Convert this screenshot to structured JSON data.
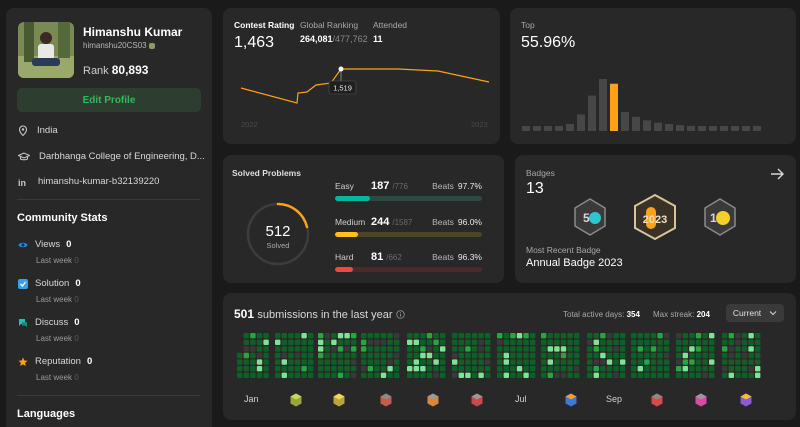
{
  "profile": {
    "name": "Himanshu Kumar",
    "handle": "himanshu20CS03",
    "rank_label": "Rank",
    "rank_value": "80,893",
    "edit_label": "Edit Profile",
    "location": "India",
    "school": "Darbhanga College of Engineering, D...",
    "linkedin": "himanshu-kumar-b32139220"
  },
  "community": {
    "title": "Community Stats",
    "items": [
      {
        "label": "Views",
        "value": "0",
        "sub": "Last week",
        "sub_value": "0"
      },
      {
        "label": "Solution",
        "value": "0",
        "sub": "Last week",
        "sub_value": "0"
      },
      {
        "label": "Discuss",
        "value": "0",
        "sub": "Last week",
        "sub_value": "0"
      },
      {
        "label": "Reputation",
        "value": "0",
        "sub": "Last week",
        "sub_value": "0"
      }
    ]
  },
  "languages_title": "Languages",
  "contest": {
    "rating_label": "Contest Rating",
    "rating_value": "1,463",
    "global_label": "Global Ranking",
    "global_value": "264,081",
    "global_total": "/477,762",
    "attended_label": "Attended",
    "attended_value": "11",
    "tooltip_value": "1,519",
    "x_start": "2022",
    "x_end": "2023",
    "line_color": "#ffa116"
  },
  "top": {
    "label": "Top",
    "value": "55.96%",
    "histogram": [
      2,
      2,
      2,
      3,
      6,
      14,
      30,
      44,
      40,
      16,
      12,
      9,
      7,
      6,
      5,
      4,
      3,
      3,
      2,
      2,
      2,
      2
    ],
    "highlight_index": 8
  },
  "solved": {
    "title": "Solved Problems",
    "total": "512",
    "total_label": "Solved",
    "beats_label": "Beats",
    "difficulties": [
      {
        "name": "Easy",
        "solved": "187",
        "total": "/776",
        "beats": "97.7%",
        "color": "#00b8a3",
        "track": "#2a4a45",
        "fraction": 0.241
      },
      {
        "name": "Medium",
        "solved": "244",
        "total": "/1587",
        "beats": "96.0%",
        "color": "#ffc01e",
        "track": "#4d4327",
        "fraction": 0.154
      },
      {
        "name": "Hard",
        "solved": "81",
        "total": "/662",
        "beats": "96.3%",
        "color": "#ef4743",
        "track": "#4a2b2b",
        "fraction": 0.122
      }
    ]
  },
  "badges": {
    "label": "Badges",
    "count": "13",
    "recent_label": "Most Recent Badge",
    "recent_name": "Annual Badge 2023",
    "icons": [
      "50-days-badge-icon",
      "annual-2023-badge-icon",
      "100-days-badge-icon"
    ]
  },
  "submissions": {
    "count": "501",
    "label": "submissions in the last year",
    "active_label": "Total active days:",
    "active_value": "354",
    "streak_label": "Max streak:",
    "streak_value": "204",
    "period": "Current",
    "months": [
      "Jan",
      "Jul",
      "Sep"
    ]
  }
}
